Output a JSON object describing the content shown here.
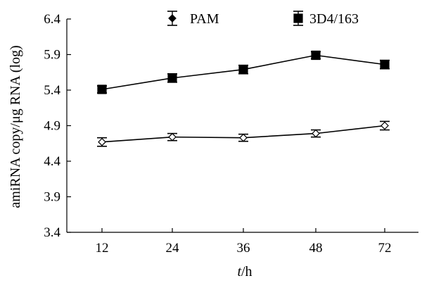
{
  "chart_data": {
    "type": "line",
    "categories": [
      "12",
      "24",
      "36",
      "48",
      "72"
    ],
    "ylabel": "amiRNA copy/μg RNA (log)",
    "xlabel_italic": "t",
    "xlabel_unit": "/h",
    "ylim": [
      3.4,
      6.4
    ],
    "yticks": [
      "3.4",
      "3.9",
      "4.4",
      "4.9",
      "5.4",
      "5.9",
      "6.4"
    ],
    "grid": false,
    "legend_position": "top",
    "series": [
      {
        "name": "PAM",
        "marker": "diamond",
        "fill": "#ffffff",
        "values": [
          4.67,
          4.74,
          4.73,
          4.79,
          4.9
        ],
        "errors": [
          0.06,
          0.05,
          0.05,
          0.05,
          0.06
        ]
      },
      {
        "name": "3D4/163",
        "marker": "square",
        "fill": "#000000",
        "values": [
          5.41,
          5.57,
          5.69,
          5.89,
          5.76
        ],
        "errors": [
          0.05,
          0.06,
          0.06,
          0.05,
          0.06
        ]
      }
    ]
  }
}
